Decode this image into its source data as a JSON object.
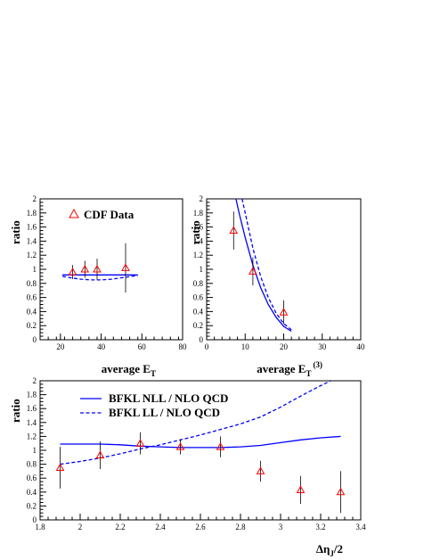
{
  "chart_data": [
    {
      "type": "scatter",
      "xlabel": "average E",
      "xlabel_sub": "T",
      "ylabel": "ratio",
      "xlim": [
        10,
        80
      ],
      "ylim": [
        0,
        2
      ],
      "xticks": [
        20,
        40,
        60,
        80
      ],
      "yticks": [
        0,
        0.2,
        0.4,
        0.6,
        0.8,
        1,
        1.2,
        1.4,
        1.6,
        1.8,
        2
      ],
      "legend": [
        "CDF Data"
      ],
      "data_points": [
        {
          "x": 26,
          "y": 0.96,
          "err": 0.1
        },
        {
          "x": 32,
          "y": 1.0,
          "err": 0.12
        },
        {
          "x": 38,
          "y": 1.0,
          "err": 0.15
        },
        {
          "x": 52,
          "y": 1.02,
          "err": 0.35
        }
      ],
      "series": [
        {
          "style": "solid",
          "x": [
            21,
            25,
            30,
            35,
            40,
            45,
            50,
            55,
            58
          ],
          "y": [
            0.92,
            0.92,
            0.92,
            0.92,
            0.92,
            0.92,
            0.92,
            0.92,
            0.92
          ]
        },
        {
          "style": "dashed",
          "x": [
            21,
            25,
            30,
            35,
            40,
            45,
            50,
            55,
            58
          ],
          "y": [
            0.9,
            0.88,
            0.86,
            0.85,
            0.85,
            0.86,
            0.88,
            0.9,
            0.91
          ]
        }
      ]
    },
    {
      "type": "scatter",
      "xlabel": "average E",
      "xlabel_sub": "T",
      "xlabel_sup": "(3)",
      "ylabel": "ratio",
      "xlim": [
        0,
        40
      ],
      "ylim": [
        0,
        2
      ],
      "xticks": [
        0,
        10,
        20,
        30,
        40
      ],
      "yticks": [
        0,
        0.2,
        0.4,
        0.6,
        0.8,
        1,
        1.2,
        1.4,
        1.6,
        1.8,
        2
      ],
      "data_points": [
        {
          "x": 7,
          "y": 1.55,
          "err": 0.27
        },
        {
          "x": 12,
          "y": 0.97,
          "err": 0.2
        },
        {
          "x": 20,
          "y": 0.39,
          "err": 0.17
        }
      ],
      "series": [
        {
          "style": "solid",
          "x": [
            7.6,
            8.5,
            10,
            12,
            14,
            16,
            18,
            20,
            22
          ],
          "y": [
            2.0,
            1.78,
            1.45,
            1.06,
            0.74,
            0.5,
            0.32,
            0.19,
            0.12
          ]
        },
        {
          "style": "dashed",
          "x": [
            9.2,
            10,
            11,
            12,
            14,
            16,
            18,
            20,
            22
          ],
          "y": [
            2.0,
            1.8,
            1.55,
            1.3,
            0.9,
            0.6,
            0.38,
            0.23,
            0.14
          ]
        }
      ]
    },
    {
      "type": "scatter",
      "xlabel": "Δη",
      "xlabel_sub": "J",
      "xlabel_tail": "/2",
      "ylabel": "ratio",
      "xlim": [
        1.8,
        3.4
      ],
      "ylim": [
        0,
        2
      ],
      "xticks": [
        1.8,
        2,
        2.2,
        2.4,
        2.6,
        2.8,
        3,
        3.2,
        3.4
      ],
      "yticks": [
        0,
        0.2,
        0.4,
        0.6,
        0.8,
        1,
        1.2,
        1.4,
        1.6,
        1.8,
        2
      ],
      "legend": [
        "BFKL NLL / NLO QCD",
        "BFKL LL / NLO QCD"
      ],
      "data_points": [
        {
          "x": 1.9,
          "y": 0.75,
          "err": 0.3
        },
        {
          "x": 2.1,
          "y": 0.93,
          "err": 0.2
        },
        {
          "x": 2.3,
          "y": 1.1,
          "err": 0.16
        },
        {
          "x": 2.5,
          "y": 1.05,
          "err": 0.11
        },
        {
          "x": 2.7,
          "y": 1.05,
          "err": 0.15
        },
        {
          "x": 2.9,
          "y": 0.7,
          "err": 0.15
        },
        {
          "x": 3.1,
          "y": 0.43,
          "err": 0.2
        },
        {
          "x": 3.3,
          "y": 0.4,
          "err": 0.3
        }
      ],
      "series": [
        {
          "name": "BFKL NLL / NLO QCD",
          "style": "solid",
          "x": [
            1.9,
            2.0,
            2.1,
            2.2,
            2.3,
            2.4,
            2.5,
            2.6,
            2.7,
            2.8,
            2.9,
            3.0,
            3.1,
            3.2,
            3.3
          ],
          "y": [
            1.09,
            1.09,
            1.09,
            1.08,
            1.06,
            1.05,
            1.04,
            1.04,
            1.04,
            1.05,
            1.07,
            1.11,
            1.15,
            1.18,
            1.2
          ]
        },
        {
          "name": "BFKL LL / NLO QCD",
          "style": "dashed",
          "x": [
            1.9,
            2.0,
            2.1,
            2.2,
            2.3,
            2.4,
            2.5,
            2.6,
            2.7,
            2.8,
            2.9,
            3.0,
            3.1,
            3.2,
            3.25
          ],
          "y": [
            0.8,
            0.84,
            0.89,
            0.95,
            1.02,
            1.08,
            1.15,
            1.22,
            1.3,
            1.38,
            1.48,
            1.62,
            1.78,
            1.93,
            2.0
          ]
        }
      ]
    }
  ],
  "colors": {
    "curve": "#0000ff",
    "marker": "#ff0000",
    "errorbar": "#000000"
  }
}
